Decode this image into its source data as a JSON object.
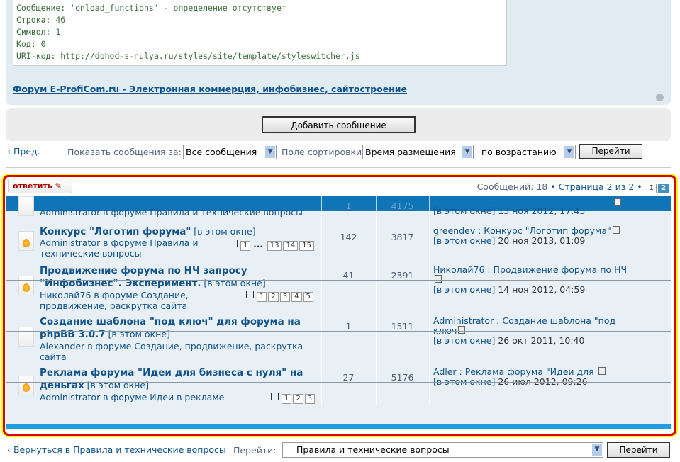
{
  "error": {
    "lines": [
      "Сообщение: 'onload_functions' - определение отсутствует",
      "Строка: 46",
      "Символ: 1",
      "Код: 0",
      "URI-код: http://dohod-s-nulya.ru/styles/site/template/styleswitcher.js"
    ]
  },
  "forum_link": "Форум E-ProfiCom.ru - Электронная коммерция, инфобизнес, сайтостроение",
  "add_post": "Добавить сообщение",
  "filters": {
    "prev": "Пред.",
    "show_label": "Показать сообщения за:",
    "show_value": "Все сообщения",
    "sort_label": "Поле сортировки",
    "sort_value": "Время размещения",
    "order_value": "по возрастанию",
    "go": "Перейти"
  },
  "reply_button": "ответить",
  "pagination": {
    "count_text": "Сообщений: 18",
    "page_text": "Страница 2 из 2",
    "sep": "•",
    "pages": [
      "1",
      "2"
    ],
    "current": "2"
  },
  "topics": [
    {
      "title": "",
      "author": "Administrator в форуме Правила и технические вопросы",
      "replies": "1",
      "views": "4175",
      "last": "",
      "last_date": "[в этом окне] 13 ноя 2012, 17:45",
      "hot": false
    },
    {
      "title": "Конкурс \"Логотип форума\"",
      "win": "[в этом окне]",
      "author": "Administrator в форуме Правила и технические вопросы",
      "pages": [
        "1",
        "...",
        "13",
        "14",
        "15"
      ],
      "replies": "142",
      "views": "3817",
      "last": "greendev : Конкурс \"Логотип форума\"",
      "last_win": "[в этом окне]",
      "last_date": "20 ноя 2013, 01:09",
      "hot": true
    },
    {
      "title": "Продвижение форума по НЧ запросу \"Инфобизнес\". Эксперимент.",
      "win": "[в этом окне]",
      "author": "Николай76 в форуме Создание, продвижение, раскрутка сайта",
      "pages": [
        "1",
        "2",
        "3",
        "4",
        "5"
      ],
      "replies": "41",
      "views": "2391",
      "last": "Николай76 : Продвижение форума по НЧ",
      "last_win": "[в этом окне]",
      "last_date": "14 ноя 2012, 04:59",
      "hot": true
    },
    {
      "title": "Создание шаблона \"под ключ\" для форума на phpBB 3.0.7",
      "win": "[в этом окне]",
      "author": "Alexander в форуме Создание, продвижение, раскрутка сайта",
      "pages": [],
      "replies": "1",
      "views": "1511",
      "last": "Administrator : Создание шаблона \"под ключ",
      "last_win": "[в этом окне]",
      "last_date": "26 окт 2011, 10:40",
      "hot": false
    },
    {
      "title": "Реклама форума \"Идеи для бизнеса с нуля\" на деньгах",
      "win": "[в этом окне]",
      "author": "Administrator в форуме Идеи в рекламе",
      "pages": [
        "1",
        "2",
        "3"
      ],
      "replies": "27",
      "views": "5176",
      "last": "Adler : Реклама форума \"Идеи для",
      "last_win": "[в этом окне]",
      "last_date": "26 июл 2012, 09:26",
      "hot": true
    }
  ],
  "footer": {
    "back": "Вернуться в Правила и технические вопросы",
    "jump_label": "Перейти:",
    "jump_value": "Правила и технические вопросы",
    "go": "Перейти"
  }
}
